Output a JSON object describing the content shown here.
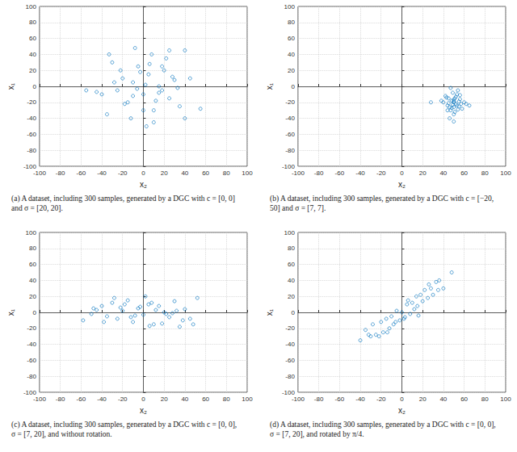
{
  "chart_data": [
    {
      "type": "scatter",
      "caption": "(a) A dataset, including 300 samples, generated by a DGC with c = [0, 0] and σ = [20, 20].",
      "xlabel": "x₂",
      "ylabel": "x₁",
      "x": [
        -30,
        -25,
        -20,
        -15,
        -10,
        -5,
        0,
        5,
        10,
        15,
        20,
        25,
        30,
        35,
        40,
        -40,
        -35,
        -12,
        8,
        18,
        -22,
        3,
        28,
        -8,
        12,
        -45,
        45,
        55,
        -55,
        2,
        -18,
        22,
        -3,
        15,
        -28,
        33,
        6,
        -10,
        40,
        -6,
        25,
        -33,
        10,
        0,
        18
      ],
      "values": [
        30,
        -5,
        10,
        -20,
        5,
        25,
        -10,
        15,
        -30,
        0,
        20,
        -15,
        8,
        -25,
        45,
        -10,
        -35,
        -40,
        40,
        -5,
        20,
        -50,
        12,
        48,
        -18,
        -7,
        10,
        -28,
        -5,
        2,
        -22,
        35,
        18,
        -8,
        5,
        -2,
        28,
        -12,
        -40,
        -3,
        45,
        40,
        -45,
        -30,
        25
      ],
      "xlim": [
        -100,
        100
      ],
      "ylim": [
        -100,
        100
      ],
      "xticks": [
        -100,
        -80,
        -60,
        -40,
        -20,
        0,
        20,
        40,
        60,
        80,
        100
      ],
      "yticks": [
        -100,
        -80,
        -60,
        -40,
        -20,
        0,
        20,
        40,
        60,
        80,
        100
      ],
      "grid": true,
      "color": "#0072bd",
      "marker": "circle"
    },
    {
      "type": "scatter",
      "caption": "(b) A dataset, including 300 samples, generated by a DGC with c = [−20, 50] and σ = [7, 7].",
      "xlabel": "x₂",
      "ylabel": "x₁",
      "x": [
        50,
        45,
        55,
        48,
        52,
        42,
        58,
        47,
        53,
        50,
        44,
        56,
        49,
        51,
        40,
        60,
        46,
        54,
        50,
        43,
        57,
        48,
        52,
        38,
        62,
        45,
        55,
        50,
        47,
        53,
        28,
        65,
        50,
        49,
        51,
        44,
        56,
        46,
        54,
        50
      ],
      "values": [
        -20,
        -15,
        -25,
        -18,
        -22,
        -12,
        -28,
        -30,
        -10,
        -35,
        -24,
        -16,
        -8,
        -32,
        -20,
        -20,
        -40,
        -5,
        -26,
        -14,
        -22,
        -27,
        -13,
        -18,
        -22,
        -21,
        -19,
        -44,
        -2,
        -24,
        -20,
        -24,
        -17,
        -23,
        -15,
        -30,
        -11,
        -26,
        -29,
        -19
      ],
      "xlim": [
        -100,
        100
      ],
      "ylim": [
        -100,
        100
      ],
      "xticks": [
        -100,
        -80,
        -60,
        -40,
        -20,
        0,
        20,
        40,
        60,
        80,
        100
      ],
      "yticks": [
        -100,
        -80,
        -60,
        -40,
        -20,
        0,
        20,
        40,
        60,
        80,
        100
      ],
      "grid": true,
      "color": "#0072bd",
      "marker": "circle"
    },
    {
      "type": "scatter",
      "caption": "(c) A dataset, including 300 samples, generated by a DGC with c = [0, 0], σ = [7, 20], and without rotation.",
      "xlabel": "x₂",
      "ylabel": "x₁",
      "x": [
        -58,
        -50,
        -45,
        -40,
        -35,
        -30,
        -25,
        -20,
        -15,
        -10,
        -5,
        0,
        5,
        10,
        15,
        20,
        25,
        30,
        35,
        40,
        45,
        52,
        -38,
        -22,
        -8,
        8,
        22,
        38,
        -28,
        12,
        -12,
        2,
        18,
        -3,
        28,
        -18,
        6,
        48,
        -48,
        32
      ],
      "values": [
        -10,
        -2,
        3,
        8,
        -5,
        12,
        -8,
        2,
        15,
        -12,
        5,
        -3,
        10,
        -15,
        8,
        0,
        -6,
        14,
        -18,
        4,
        -8,
        18,
        -12,
        6,
        -4,
        12,
        -2,
        -10,
        18,
        3,
        -6,
        20,
        -14,
        7,
        -1,
        10,
        -17,
        -15,
        5,
        2
      ],
      "xlim": [
        -100,
        100
      ],
      "ylim": [
        -100,
        100
      ],
      "xticks": [
        -100,
        -80,
        -60,
        -40,
        -20,
        0,
        20,
        40,
        60,
        80,
        100
      ],
      "yticks": [
        -100,
        -80,
        -60,
        -40,
        -20,
        0,
        20,
        40,
        60,
        80,
        100
      ],
      "grid": true,
      "color": "#0072bd",
      "marker": "circle"
    },
    {
      "type": "scatter",
      "caption": "(d) A dataset, including 300 samples, generated by a DGC with c = [0, 0], σ = [7, 20], and rotated by π/4.",
      "xlabel": "x₂",
      "ylabel": "x₁",
      "x": [
        -40,
        -35,
        -30,
        -28,
        -25,
        -20,
        -18,
        -15,
        -12,
        -10,
        -8,
        -5,
        -2,
        0,
        3,
        5,
        8,
        10,
        12,
        15,
        18,
        20,
        22,
        25,
        28,
        30,
        33,
        35,
        40,
        48,
        -22,
        -6,
        6,
        14,
        26,
        -32,
        2,
        16,
        -14,
        36
      ],
      "values": [
        -35,
        -22,
        -30,
        -15,
        -28,
        -12,
        -25,
        -8,
        -20,
        -5,
        -15,
        2,
        -10,
        0,
        -6,
        10,
        -2,
        12,
        4,
        8,
        22,
        14,
        28,
        18,
        30,
        22,
        38,
        28,
        30,
        50,
        -30,
        -12,
        15,
        20,
        35,
        -28,
        -8,
        -4,
        -25,
        40
      ],
      "xlim": [
        -100,
        100
      ],
      "ylim": [
        -100,
        100
      ],
      "xticks": [
        -100,
        -80,
        -60,
        -40,
        -20,
        0,
        20,
        40,
        60,
        80,
        100
      ],
      "yticks": [
        -100,
        -80,
        -60,
        -40,
        -20,
        0,
        20,
        40,
        60,
        80,
        100
      ],
      "grid": true,
      "color": "#0072bd",
      "marker": "circle"
    }
  ]
}
